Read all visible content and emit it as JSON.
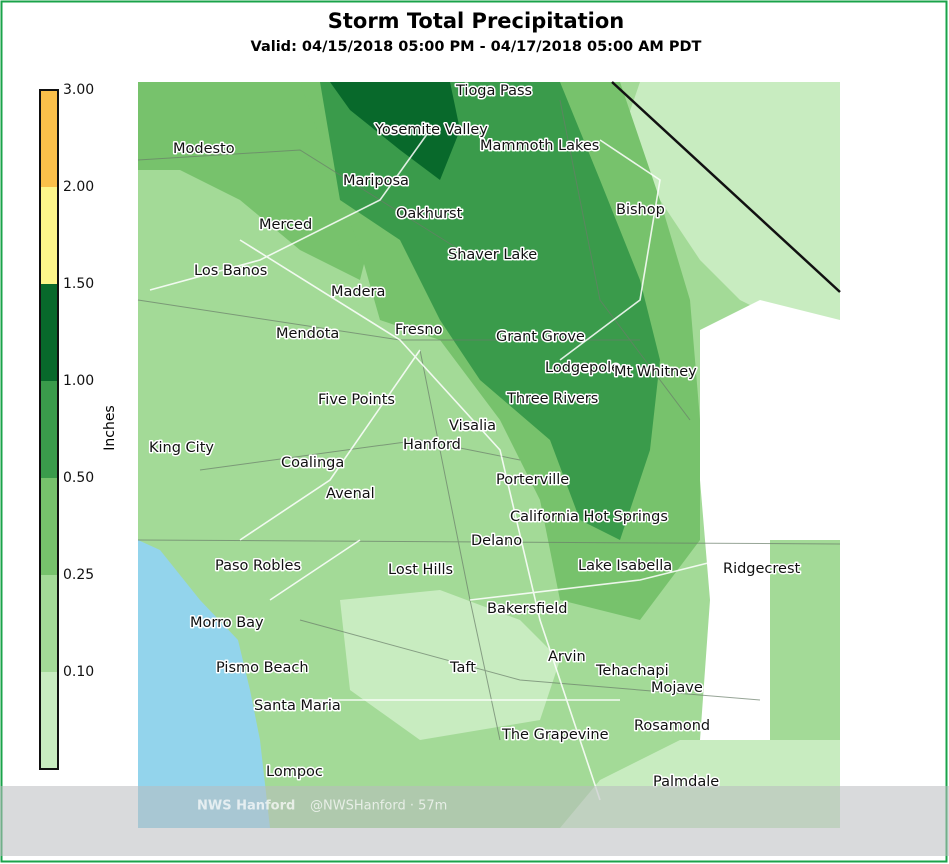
{
  "header": {
    "title": "Storm Total Precipitation",
    "subtitle": "Valid: 04/15/2018 05:00 PM - 04/17/2018 05:00 AM PDT"
  },
  "legend": {
    "title": "Inches",
    "tick_labels": [
      "0.10",
      "0.25",
      "0.50",
      "1.00",
      "1.50",
      "2.00",
      "3.00"
    ],
    "colors": [
      "#c8ecc0",
      "#a3da97",
      "#77c26c",
      "#3a9b4b",
      "#08692b",
      "#fdf68a",
      "#fbc04a"
    ]
  },
  "map": {
    "cities": [
      "Tioga Pass",
      "Yosemite Valley",
      "Mammoth Lakes",
      "Modesto",
      "Mariposa",
      "Bishop",
      "Oakhurst",
      "Merced",
      "Shaver Lake",
      "Los Banos",
      "Madera",
      "Fresno",
      "Mendota",
      "Grant Grove",
      "Lodgepole",
      "Mt Whitney",
      "Five Points",
      "Three Rivers",
      "Visalia",
      "Hanford",
      "King City",
      "Coalinga",
      "Porterville",
      "Avenal",
      "California Hot Springs",
      "Delano",
      "Lake Isabella",
      "Ridgecrest",
      "Paso Robles",
      "Lost Hills",
      "Bakersfield",
      "Morro Bay",
      "Arvin",
      "Pismo Beach",
      "Taft",
      "Tehachapi",
      "Mojave",
      "Santa Maria",
      "Rosamond",
      "The Grapevine",
      "Lompoc",
      "Palmdale"
    ]
  },
  "overlay": {
    "account": "NWS Hanford",
    "handle": "@NWSHanford · 57m"
  }
}
